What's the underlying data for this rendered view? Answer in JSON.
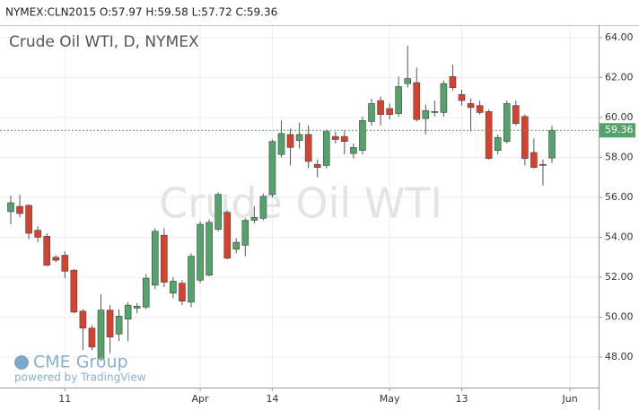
{
  "chart_data": {
    "type": "candlestick",
    "header": "NYMEX:CLN2015 O:57.97 H:59.58 L:57.72 C:59.36",
    "title": "Crude Oil WTI, D, NYMEX",
    "watermark": "Crude Oil WTI",
    "logo": "CME Group",
    "credit": "powered by TradingView",
    "up_color": "#53a36b",
    "down_color": "#d9412f",
    "grid": true,
    "categories": [
      null,
      null,
      null,
      null,
      null,
      null,
      "11",
      null,
      null,
      null,
      null,
      null,
      null,
      null,
      null,
      null,
      null,
      null,
      null,
      null,
      null,
      "Apr",
      null,
      null,
      null,
      null,
      null,
      null,
      null,
      "14",
      null,
      null,
      null,
      null,
      null,
      null,
      null,
      null,
      null,
      null,
      null,
      null,
      "May",
      null,
      null,
      null,
      null,
      null,
      null,
      null,
      "13",
      null,
      null,
      null,
      null,
      null,
      null,
      null,
      null,
      null,
      null,
      null,
      "Jun"
    ],
    "open": [
      55.28,
      55.55,
      55.6,
      54.35,
      54.05,
      53.0,
      53.1,
      52.35,
      50.3,
      49.45,
      47.9,
      50.35,
      49.15,
      49.9,
      50.45,
      50.5,
      51.6,
      54.1,
      51.2,
      51.7,
      50.75,
      51.85,
      52.1,
      54.4,
      55.25,
      53.4,
      53.6,
      54.85,
      54.95,
      56.15,
      58.15,
      59.15,
      58.85,
      59.15,
      57.65,
      57.6,
      59.05,
      59.05,
      58.2,
      58.35,
      59.8,
      60.85,
      60.45,
      60.2,
      61.7,
      61.75,
      59.95,
      60.25,
      60.25,
      62.05,
      61.15,
      60.7,
      60.6,
      60.3,
      58.35,
      58.8,
      60.6,
      60.05,
      58.25,
      57.65,
      57.97,
      null,
      null
    ],
    "high": [
      56.09,
      56.13,
      55.65,
      54.55,
      54.2,
      53.1,
      53.3,
      52.4,
      50.4,
      49.6,
      51.15,
      50.6,
      50.4,
      50.75,
      50.7,
      52.15,
      54.45,
      54.45,
      52.0,
      51.85,
      53.2,
      54.8,
      54.9,
      56.25,
      55.35,
      53.95,
      54.95,
      55.55,
      56.2,
      58.9,
      59.85,
      59.45,
      59.75,
      59.6,
      57.9,
      59.4,
      59.3,
      59.35,
      58.7,
      60.05,
      60.95,
      61.05,
      60.7,
      62.05,
      63.6,
      62.5,
      60.65,
      60.85,
      61.85,
      62.65,
      61.4,
      60.95,
      60.85,
      60.4,
      59.15,
      60.85,
      60.85,
      60.15,
      58.95,
      57.9,
      59.58,
      null,
      null
    ],
    "low": [
      54.65,
      55.0,
      53.9,
      53.75,
      52.55,
      52.75,
      51.95,
      50.2,
      48.35,
      48.35,
      47.8,
      48.2,
      48.8,
      48.8,
      50.2,
      50.4,
      51.4,
      51.5,
      50.95,
      50.6,
      50.5,
      51.7,
      52.05,
      54.3,
      52.9,
      53.2,
      53.05,
      54.7,
      54.85,
      56.0,
      58.0,
      57.6,
      58.45,
      57.45,
      57.0,
      57.45,
      58.7,
      58.15,
      57.95,
      58.15,
      59.6,
      59.6,
      59.9,
      60.05,
      61.5,
      59.8,
      59.15,
      60.05,
      60.05,
      61.35,
      60.6,
      59.3,
      60.15,
      57.9,
      58.15,
      58.7,
      59.6,
      57.6,
      57.45,
      56.6,
      57.72,
      null,
      null
    ],
    "close": [
      55.73,
      55.19,
      54.2,
      54.0,
      52.6,
      52.85,
      52.3,
      50.25,
      49.45,
      48.5,
      50.35,
      49.0,
      50.05,
      50.6,
      50.55,
      51.95,
      54.3,
      51.75,
      51.8,
      50.8,
      53.05,
      54.65,
      54.75,
      56.15,
      52.95,
      53.75,
      54.85,
      55.0,
      56.05,
      58.8,
      59.2,
      58.5,
      59.15,
      57.8,
      57.5,
      59.3,
      58.9,
      58.8,
      58.5,
      59.85,
      60.7,
      60.15,
      60.15,
      61.55,
      61.95,
      59.9,
      60.35,
      60.3,
      61.7,
      61.5,
      60.85,
      60.5,
      60.25,
      57.95,
      59.0,
      60.7,
      59.7,
      57.95,
      57.5,
      57.6,
      59.36,
      null,
      null
    ],
    "ylim": [
      46.47,
      64.45
    ],
    "yticks": [
      {
        "value": 48,
        "label": "48.00"
      },
      {
        "value": 50,
        "label": "50.00"
      },
      {
        "value": 52,
        "label": "52.00"
      },
      {
        "value": 54,
        "label": "54.00"
      },
      {
        "value": 56,
        "label": "56.00"
      },
      {
        "value": 58,
        "label": "58.00"
      },
      {
        "value": 60,
        "label": "60.00"
      },
      {
        "value": 62,
        "label": "62.00"
      },
      {
        "value": 64,
        "label": "64.00"
      }
    ]
  }
}
